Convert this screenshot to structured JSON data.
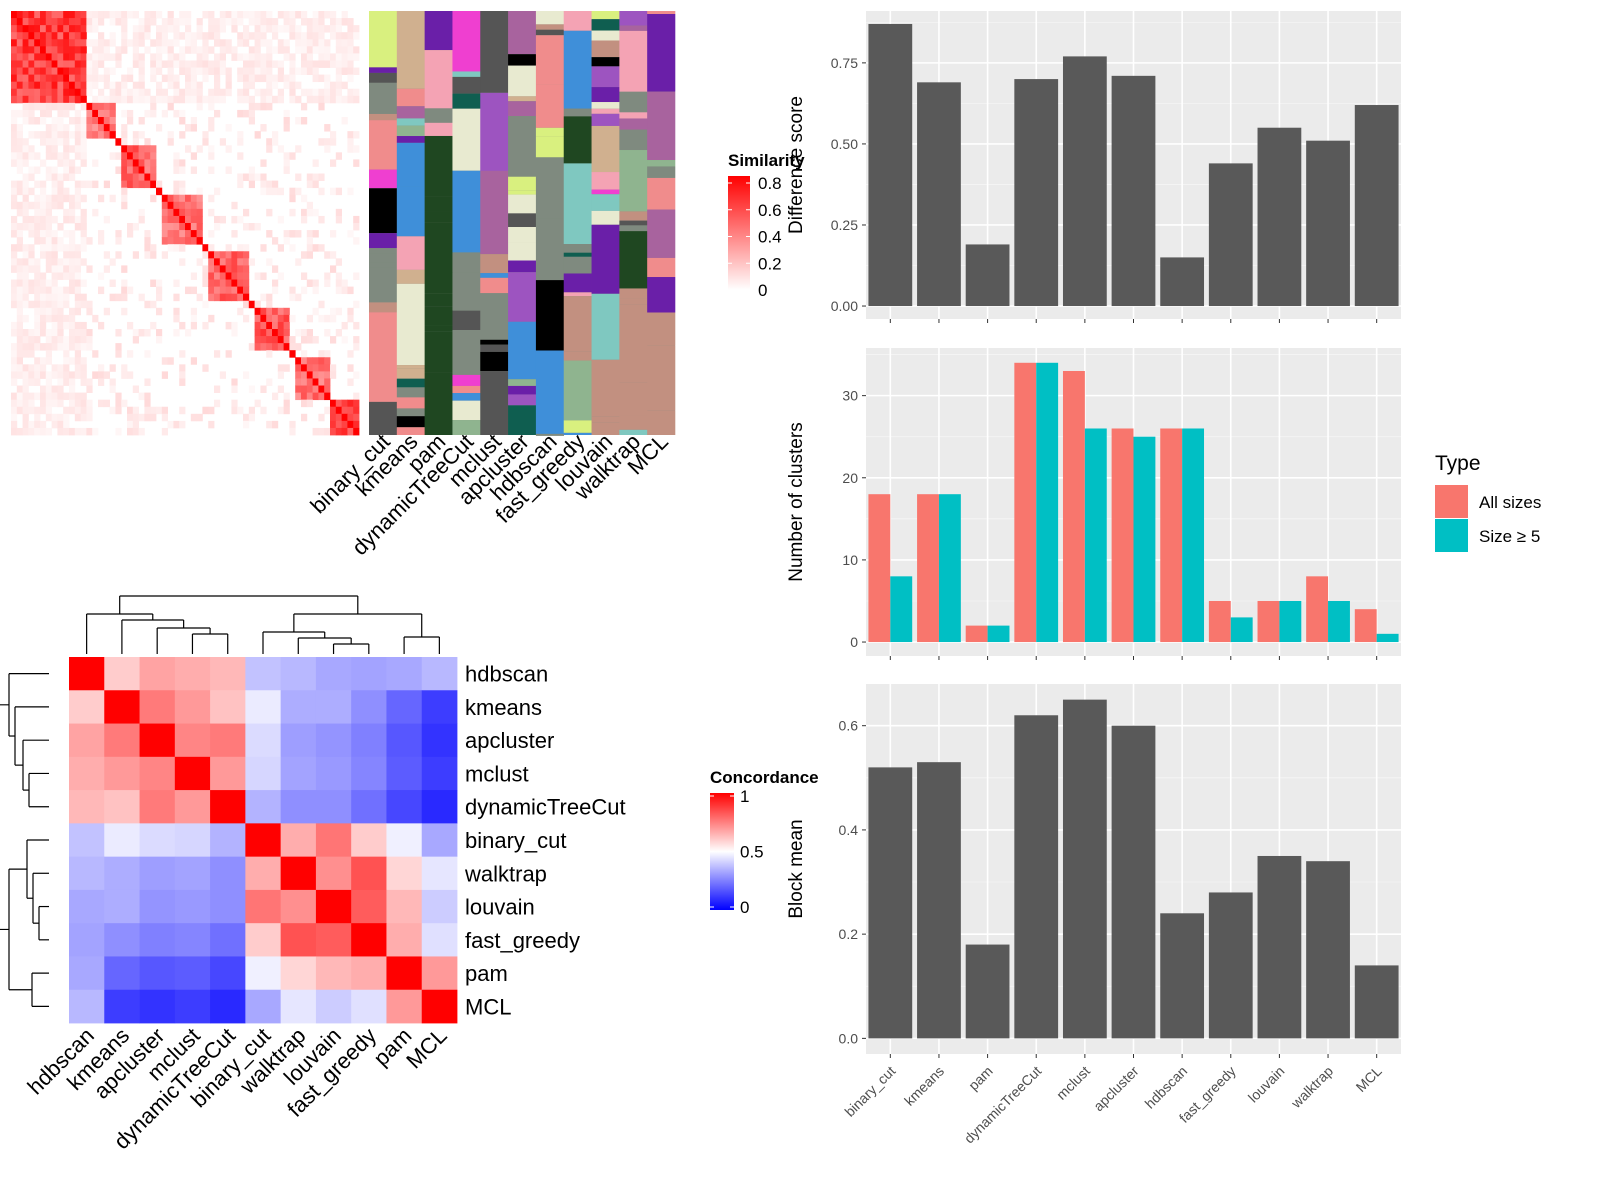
{
  "chart_data": [
    {
      "type": "heatmap",
      "name": "similarity-matrix",
      "legend": {
        "title": "Similarity",
        "ticks": [
          "0",
          "0.2",
          "0.4",
          "0.6",
          "0.8"
        ],
        "colors": [
          "#ffffff",
          "#ff0000"
        ]
      },
      "column_labels": [
        "binary_cut",
        "kmeans",
        "pam",
        "dynamicTreeCut",
        "mclust",
        "apcluster",
        "hdbscan",
        "fast_greedy",
        "louvain",
        "walktrap",
        "MCL"
      ],
      "blocks": [
        {
          "start": 0.0,
          "end": 0.21,
          "intensity": 0.75
        },
        {
          "start": 0.22,
          "end": 0.3,
          "intensity": 0.5
        },
        {
          "start": 0.32,
          "end": 0.42,
          "intensity": 0.6
        },
        {
          "start": 0.44,
          "end": 0.55,
          "intensity": 0.55
        },
        {
          "start": 0.57,
          "end": 0.68,
          "intensity": 0.6
        },
        {
          "start": 0.7,
          "end": 0.8,
          "intensity": 0.65
        },
        {
          "start": 0.82,
          "end": 0.91,
          "intensity": 0.55
        },
        {
          "start": 0.92,
          "end": 1.0,
          "intensity": 0.7
        }
      ],
      "palette": [
        "#8fb48f",
        "#f08c8c",
        "#6a1fa8",
        "#1f4721",
        "#a8639e",
        "#0f5e50",
        "#d9f07f",
        "#3f8fd9",
        "#ef3fd0",
        "#c29080",
        "#e8ead0",
        "#000000",
        "#9d54c0",
        "#d0b08f",
        "#7fc8c0",
        "#555555",
        "#f4a3b4"
      ]
    },
    {
      "type": "heatmap",
      "name": "concordance-matrix",
      "legend": {
        "title": "Concordance",
        "ticks": [
          "0",
          "0.5",
          "1"
        ],
        "colors": [
          "#0000ff",
          "#ffffff",
          "#ff0000"
        ]
      },
      "rows": [
        "hdbscan",
        "kmeans",
        "apcluster",
        "mclust",
        "dynamicTreeCut",
        "binary_cut",
        "walktrap",
        "louvain",
        "fast_greedy",
        "pam",
        "MCL"
      ],
      "columns": [
        "hdbscan",
        "kmeans",
        "apcluster",
        "mclust",
        "dynamicTreeCut",
        "binary_cut",
        "walktrap",
        "louvain",
        "fast_greedy",
        "pam",
        "MCL"
      ],
      "values": [
        [
          1.0,
          0.6,
          0.68,
          0.66,
          0.64,
          0.38,
          0.36,
          0.33,
          0.32,
          0.33,
          0.36
        ],
        [
          0.6,
          1.0,
          0.76,
          0.7,
          0.62,
          0.46,
          0.34,
          0.34,
          0.28,
          0.2,
          0.12
        ],
        [
          0.68,
          0.76,
          1.0,
          0.74,
          0.76,
          0.43,
          0.31,
          0.29,
          0.25,
          0.17,
          0.1
        ],
        [
          0.66,
          0.7,
          0.74,
          1.0,
          0.7,
          0.42,
          0.32,
          0.3,
          0.26,
          0.18,
          0.12
        ],
        [
          0.64,
          0.62,
          0.76,
          0.7,
          1.0,
          0.35,
          0.28,
          0.28,
          0.22,
          0.14,
          0.08
        ],
        [
          0.38,
          0.46,
          0.43,
          0.42,
          0.35,
          1.0,
          0.66,
          0.77,
          0.6,
          0.47,
          0.33
        ],
        [
          0.36,
          0.34,
          0.31,
          0.32,
          0.28,
          0.66,
          1.0,
          0.72,
          0.84,
          0.58,
          0.45
        ],
        [
          0.33,
          0.34,
          0.29,
          0.3,
          0.28,
          0.77,
          0.72,
          1.0,
          0.82,
          0.64,
          0.4
        ],
        [
          0.32,
          0.28,
          0.25,
          0.26,
          0.22,
          0.6,
          0.84,
          0.82,
          1.0,
          0.66,
          0.44
        ],
        [
          0.33,
          0.2,
          0.17,
          0.18,
          0.14,
          0.47,
          0.58,
          0.64,
          0.66,
          1.0,
          0.7
        ],
        [
          0.36,
          0.12,
          0.1,
          0.12,
          0.08,
          0.33,
          0.45,
          0.4,
          0.44,
          0.7,
          1.0
        ]
      ]
    },
    {
      "type": "bar",
      "name": "difference-score",
      "categories": [
        "binary_cut",
        "kmeans",
        "pam",
        "dynamicTreeCut",
        "mclust",
        "apcluster",
        "hdbscan",
        "fast_greedy",
        "louvain",
        "walktrap",
        "MCL"
      ],
      "values": [
        0.87,
        0.69,
        0.19,
        0.7,
        0.77,
        0.71,
        0.15,
        0.44,
        0.55,
        0.51,
        0.62
      ],
      "ylabel": "Difference score",
      "ylim": [
        -0.04,
        0.91
      ],
      "yticks": [
        0.0,
        0.25,
        0.5,
        0.75
      ],
      "ytick_labels": [
        "0.00",
        "0.25",
        "0.50",
        "0.75"
      ],
      "grid": true,
      "bar_color": "#595959"
    },
    {
      "type": "bar",
      "name": "number-of-clusters",
      "categories": [
        "binary_cut",
        "kmeans",
        "pam",
        "dynamicTreeCut",
        "mclust",
        "apcluster",
        "hdbscan",
        "fast_greedy",
        "louvain",
        "walktrap",
        "MCL"
      ],
      "series": [
        {
          "name": "All sizes",
          "color": "#f8766d",
          "values": [
            18,
            18,
            2,
            34,
            33,
            26,
            26,
            5,
            5,
            8,
            4
          ]
        },
        {
          "name": "Size ≥ 5",
          "color": "#00bfc4",
          "values": [
            8,
            18,
            2,
            34,
            26,
            25,
            26,
            3,
            5,
            5,
            1
          ]
        }
      ],
      "ylabel": "Number of clusters",
      "ylim": [
        -1.7,
        35.8
      ],
      "yticks": [
        0,
        10,
        20,
        30
      ],
      "ytick_labels": [
        "0",
        "10",
        "20",
        "30"
      ],
      "grid": true,
      "legend": {
        "title": "Type",
        "position": "right"
      }
    },
    {
      "type": "bar",
      "name": "block-mean",
      "categories": [
        "binary_cut",
        "kmeans",
        "pam",
        "dynamicTreeCut",
        "mclust",
        "apcluster",
        "hdbscan",
        "fast_greedy",
        "louvain",
        "walktrap",
        "MCL"
      ],
      "values": [
        0.52,
        0.53,
        0.18,
        0.62,
        0.65,
        0.6,
        0.24,
        0.28,
        0.35,
        0.34,
        0.14
      ],
      "ylabel": "Block mean",
      "ylim": [
        -0.03,
        0.68
      ],
      "yticks": [
        0.0,
        0.2,
        0.4,
        0.6
      ],
      "ytick_labels": [
        "0.0",
        "0.2",
        "0.4",
        "0.6"
      ],
      "grid": true,
      "bar_color": "#595959"
    }
  ]
}
